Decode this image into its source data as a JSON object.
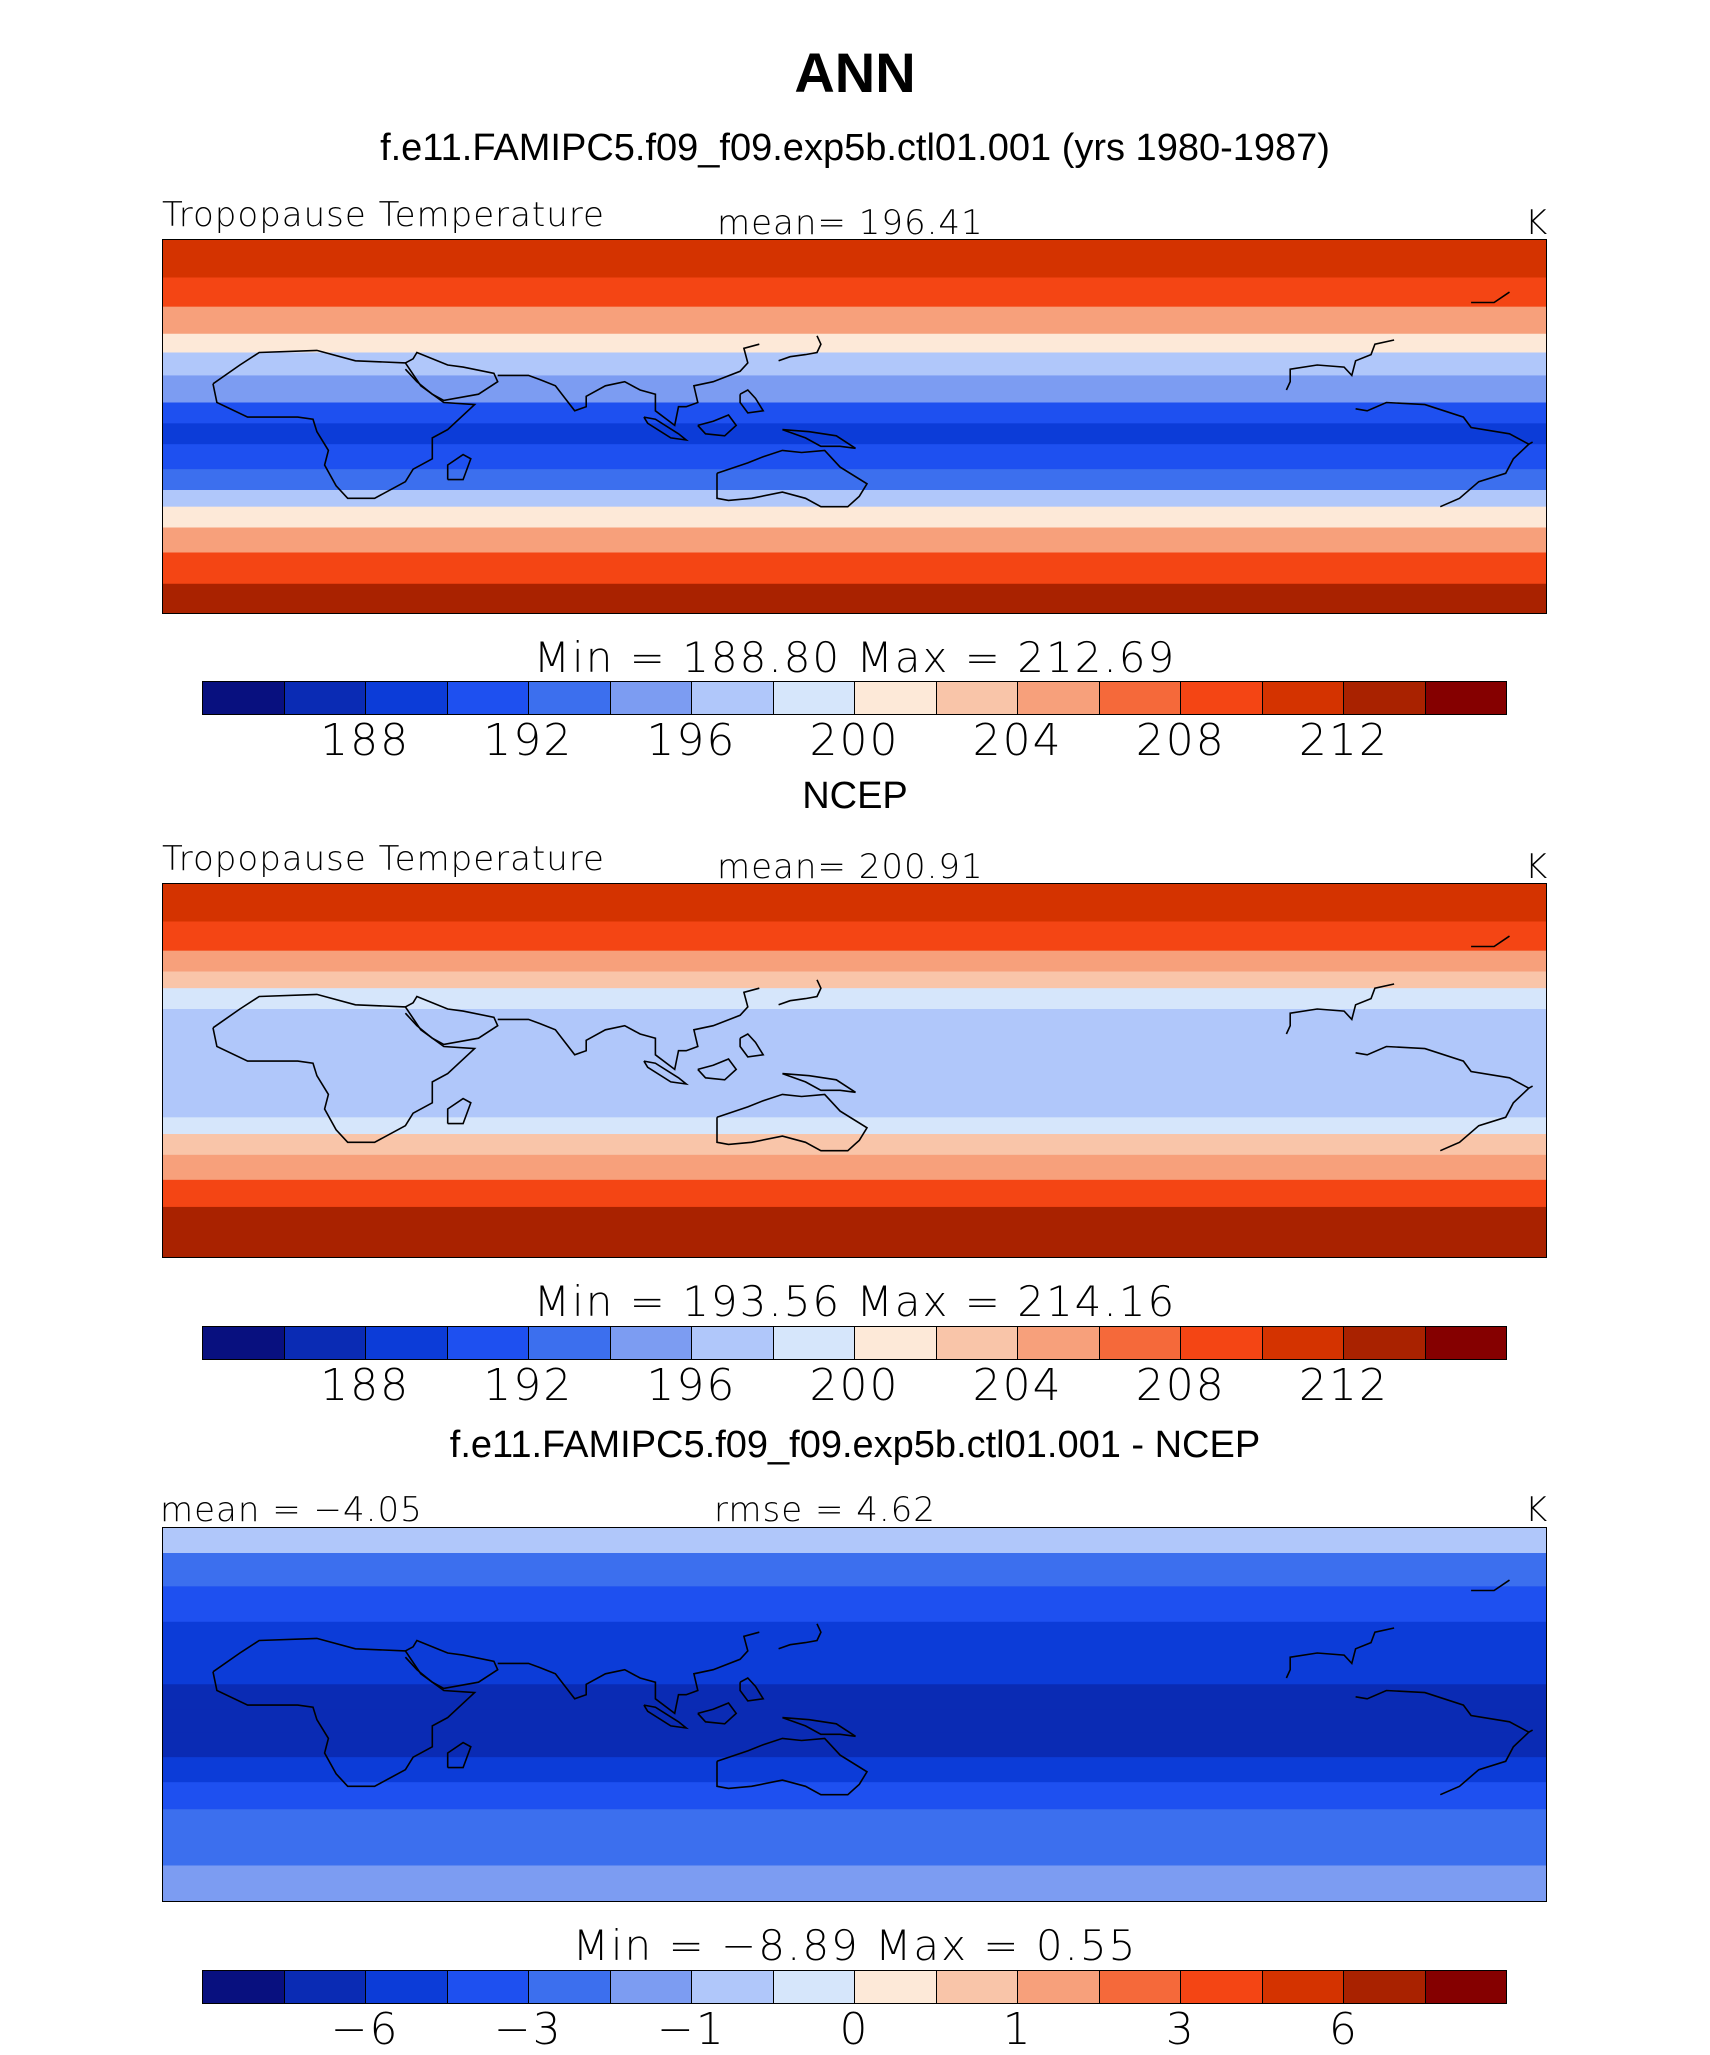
{
  "figure": {
    "title": "ANN"
  },
  "palette": {
    "absolute": [
      "#08107f",
      "#0a2bb4",
      "#0c3cd8",
      "#1e50f0",
      "#3c6fee",
      "#7c9cf2",
      "#b0c7fa",
      "#d6e6fb",
      "#fde9d8",
      "#f9c5a9",
      "#f7a07b",
      "#f5693a",
      "#f44514",
      "#d43300",
      "#a92200",
      "#850000"
    ],
    "difference": [
      "#08107f",
      "#0a2bb4",
      "#0c3cd8",
      "#1e50f0",
      "#3c6fee",
      "#7c9cf2",
      "#b0c7fa",
      "#d6e6fb",
      "#fde9d8",
      "#f9c5a9",
      "#f7a07b",
      "#f5693a",
      "#f44514",
      "#d43300",
      "#a92200",
      "#850000"
    ]
  },
  "chart_data": [
    {
      "type": "heatmap",
      "title": "f.e11.FAMIPC5.f09_f09.exp5b.ctl01.001 (yrs 1980-1987)",
      "left_label": "Tropopause Temperature",
      "center_label": "mean=  196.41",
      "units": "K",
      "min_max": "Min  =  188.80  Max  =  212.69",
      "min": 188.8,
      "max": 212.69,
      "mean": 196.41,
      "colorbar_ticks": [
        "188",
        "192",
        "196",
        "200",
        "204",
        "208",
        "212"
      ],
      "contour_levels": [
        186,
        188,
        190,
        192,
        194,
        196,
        198,
        200,
        202,
        204,
        206,
        208,
        210,
        212,
        214
      ],
      "palette": "absolute",
      "bands": [
        {
          "lat": 90,
          "value": 211
        },
        {
          "lat": 72,
          "value": 208
        },
        {
          "lat": 58,
          "value": 204
        },
        {
          "lat": 45,
          "value": 200
        },
        {
          "lat": 36,
          "value": 197
        },
        {
          "lat": 25,
          "value": 194
        },
        {
          "lat": 12,
          "value": 191
        },
        {
          "lat": 2,
          "value": 189
        },
        {
          "lat": -8,
          "value": 190
        },
        {
          "lat": -20,
          "value": 193
        },
        {
          "lat": -30,
          "value": 196
        },
        {
          "lat": -38,
          "value": 200
        },
        {
          "lat": -48,
          "value": 205
        },
        {
          "lat": -60,
          "value": 209
        },
        {
          "lat": -75,
          "value": 212
        }
      ]
    },
    {
      "type": "heatmap",
      "title": "NCEP",
      "left_label": "Tropopause Temperature",
      "center_label": "mean=  200.91",
      "units": "K",
      "min_max": "Min  =  193.56  Max  =  214.16",
      "min": 193.56,
      "max": 214.16,
      "mean": 200.91,
      "colorbar_ticks": [
        "188",
        "192",
        "196",
        "200",
        "204",
        "208",
        "212"
      ],
      "contour_levels": [
        186,
        188,
        190,
        192,
        194,
        196,
        198,
        200,
        202,
        204,
        206,
        208,
        210,
        212,
        214
      ],
      "palette": "absolute",
      "bands": [
        {
          "lat": 90,
          "value": 211
        },
        {
          "lat": 72,
          "value": 208
        },
        {
          "lat": 58,
          "value": 205
        },
        {
          "lat": 48,
          "value": 202
        },
        {
          "lat": 40,
          "value": 199
        },
        {
          "lat": 30,
          "value": 197
        },
        {
          "lat": 15,
          "value": 196
        },
        {
          "lat": 0,
          "value": 196
        },
        {
          "lat": -12,
          "value": 197
        },
        {
          "lat": -22,
          "value": 199
        },
        {
          "lat": -30,
          "value": 202
        },
        {
          "lat": -40,
          "value": 205
        },
        {
          "lat": -52,
          "value": 209
        },
        {
          "lat": -65,
          "value": 212
        },
        {
          "lat": -80,
          "value": 213
        }
      ]
    },
    {
      "type": "heatmap",
      "title": "f.e11.FAMIPC5.f09_f09.exp5b.ctl01.001 - NCEP",
      "left_label": "mean =   −4.05",
      "center_label": "rmse =     4.62",
      "units": "K",
      "min_max": "Min  =   −8.89  Max  =     0.55",
      "min": -8.89,
      "max": 0.55,
      "mean": -4.05,
      "rmse": 4.62,
      "colorbar_ticks": [
        "−6",
        "−3",
        "−1",
        "0",
        "1",
        "3",
        "6"
      ],
      "contour_levels": [
        -8,
        -6,
        -4,
        -3,
        -2,
        -1,
        -0.5,
        0,
        0.5,
        1,
        2,
        3,
        4,
        6,
        8
      ],
      "palette": "difference",
      "bands": [
        {
          "lat": 90,
          "value": -1
        },
        {
          "lat": 78,
          "value": -2.5
        },
        {
          "lat": 62,
          "value": -3.5
        },
        {
          "lat": 45,
          "value": -4.5
        },
        {
          "lat": 30,
          "value": -5.5
        },
        {
          "lat": 15,
          "value": -6.5
        },
        {
          "lat": 3,
          "value": -7
        },
        {
          "lat": -8,
          "value": -6.5
        },
        {
          "lat": -20,
          "value": -5
        },
        {
          "lat": -32,
          "value": -4
        },
        {
          "lat": -45,
          "value": -3
        },
        {
          "lat": -58,
          "value": -2.5
        },
        {
          "lat": -72,
          "value": -1.5
        }
      ]
    }
  ]
}
